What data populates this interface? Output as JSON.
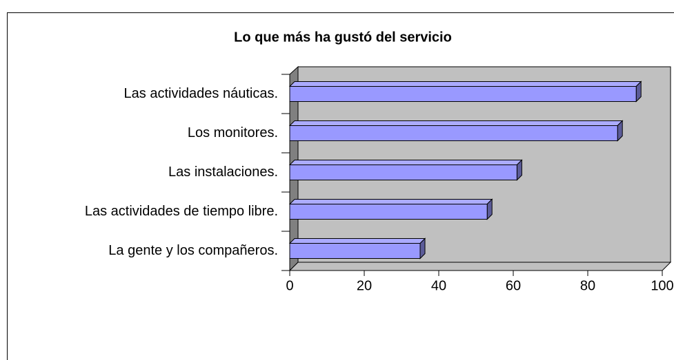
{
  "chart_data": {
    "type": "bar3d",
    "orientation": "horizontal",
    "title": "Lo que más ha gustó del servicio",
    "categories": [
      "Las actividades náuticas.",
      "Los monitores.",
      "Las instalaciones.",
      "Las actividades de tiempo libre.",
      "La gente y los compañeros."
    ],
    "values": [
      93,
      88,
      61,
      53,
      35
    ],
    "color": "#9999ff",
    "xlim": [
      0,
      100
    ],
    "xticks": [
      0,
      20,
      40,
      60,
      80,
      100
    ]
  }
}
